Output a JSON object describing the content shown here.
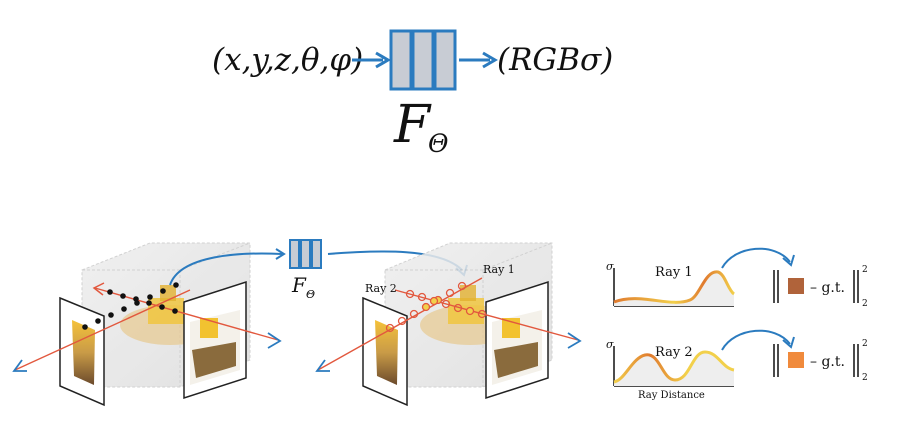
{
  "top": {
    "input_label": "(x,y,z,θ,φ)",
    "output_label": "(RGBσ)",
    "network_symbol": "F",
    "network_subscript": "Θ"
  },
  "bottom": {
    "network_symbol": "F",
    "network_subscript": "Θ",
    "ray_label_1": "Ray 1",
    "ray_label_2": "Ray 2",
    "plot1_title": "Ray 1",
    "plot2_title": "Ray 2",
    "sigma_label": "σ",
    "xaxis_label": "Ray Distance",
    "loss_text": "– g.t.",
    "norm_sup": "2",
    "norm_sub": "2"
  },
  "colors": {
    "arrow_blue": "#2b7bbf",
    "net_fill": "#c8ccd4",
    "ray_red": "#e2583e",
    "curve_orange": "#e07a2e",
    "curve_yellow": "#f2d04b",
    "swatch_ray1": "#b0633a",
    "swatch_ray2": "#f08a3c"
  }
}
